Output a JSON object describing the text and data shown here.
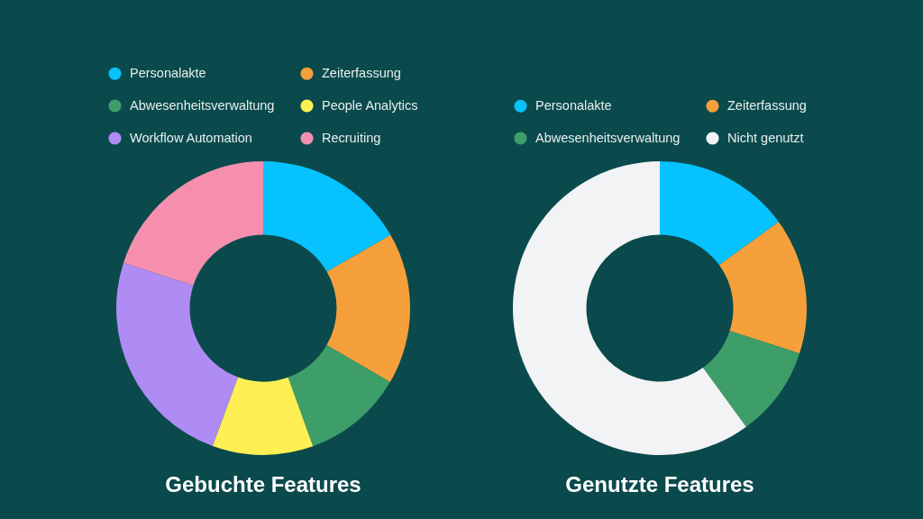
{
  "chart_data": [
    {
      "type": "donut",
      "title": "Gebuchte Features",
      "categories": [
        "Personalakte",
        "Zeiterfassung",
        "Abwesenheitsverwaltung",
        "People Analytics",
        "Workflow Automation",
        "Recruiting"
      ],
      "values": [
        16.7,
        16.7,
        11.1,
        11.1,
        24.4,
        20.0
      ],
      "colors": [
        "#06c2ff",
        "#f6a03c",
        "#3e9e6a",
        "#fef054",
        "#af8cf4",
        "#f68fae"
      ],
      "legend": "top"
    },
    {
      "type": "donut",
      "title": "Genutzte Features",
      "categories": [
        "Personalakte",
        "Zeiterfassung",
        "Abwesenheitsverwaltung",
        "Nicht genutzt"
      ],
      "values": [
        15,
        15,
        10,
        60
      ],
      "colors": [
        "#06c2ff",
        "#f6a03c",
        "#3e9e6a",
        "#f2f3f5"
      ],
      "legend": "top"
    }
  ]
}
